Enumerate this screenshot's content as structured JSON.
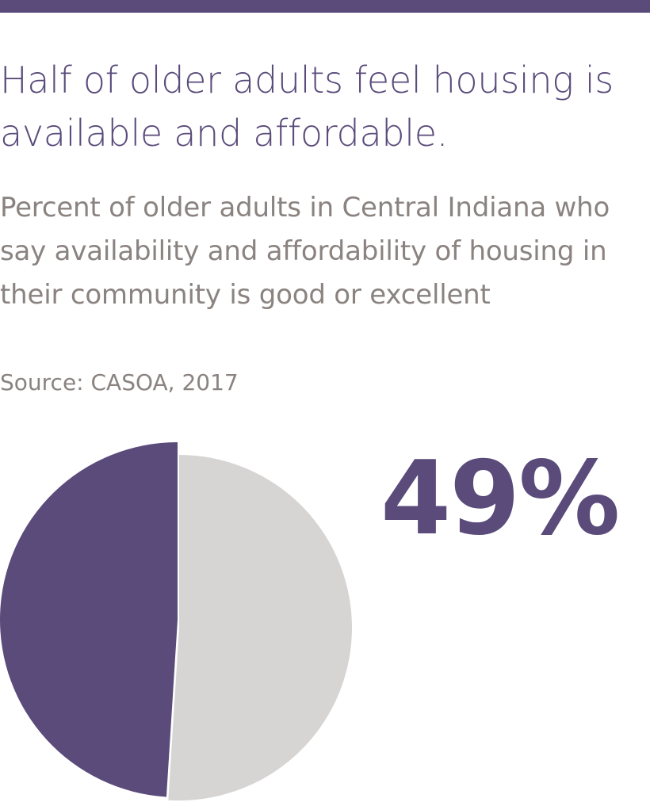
{
  "header": {
    "title": "Half of older adults feel housing is available and affordable.",
    "subtitle": "Percent of older adults in Central Indiana who say availability and affordability of housing in their community is good or excellent",
    "source": "Source: CASOA, 2017"
  },
  "highlight": {
    "value_text": "49%"
  },
  "colors": {
    "accent": "#5a4b7b",
    "remainder": "#d7d4d4",
    "subtitle": "#8a8380",
    "source": "#8a8380"
  },
  "chart_data": {
    "type": "pie",
    "title": "",
    "slices": [
      {
        "label": "",
        "value": 49,
        "color": "#5a4b7b"
      },
      {
        "label": "",
        "value": 51,
        "color": "#d7d4d4"
      }
    ],
    "legend": "none"
  }
}
